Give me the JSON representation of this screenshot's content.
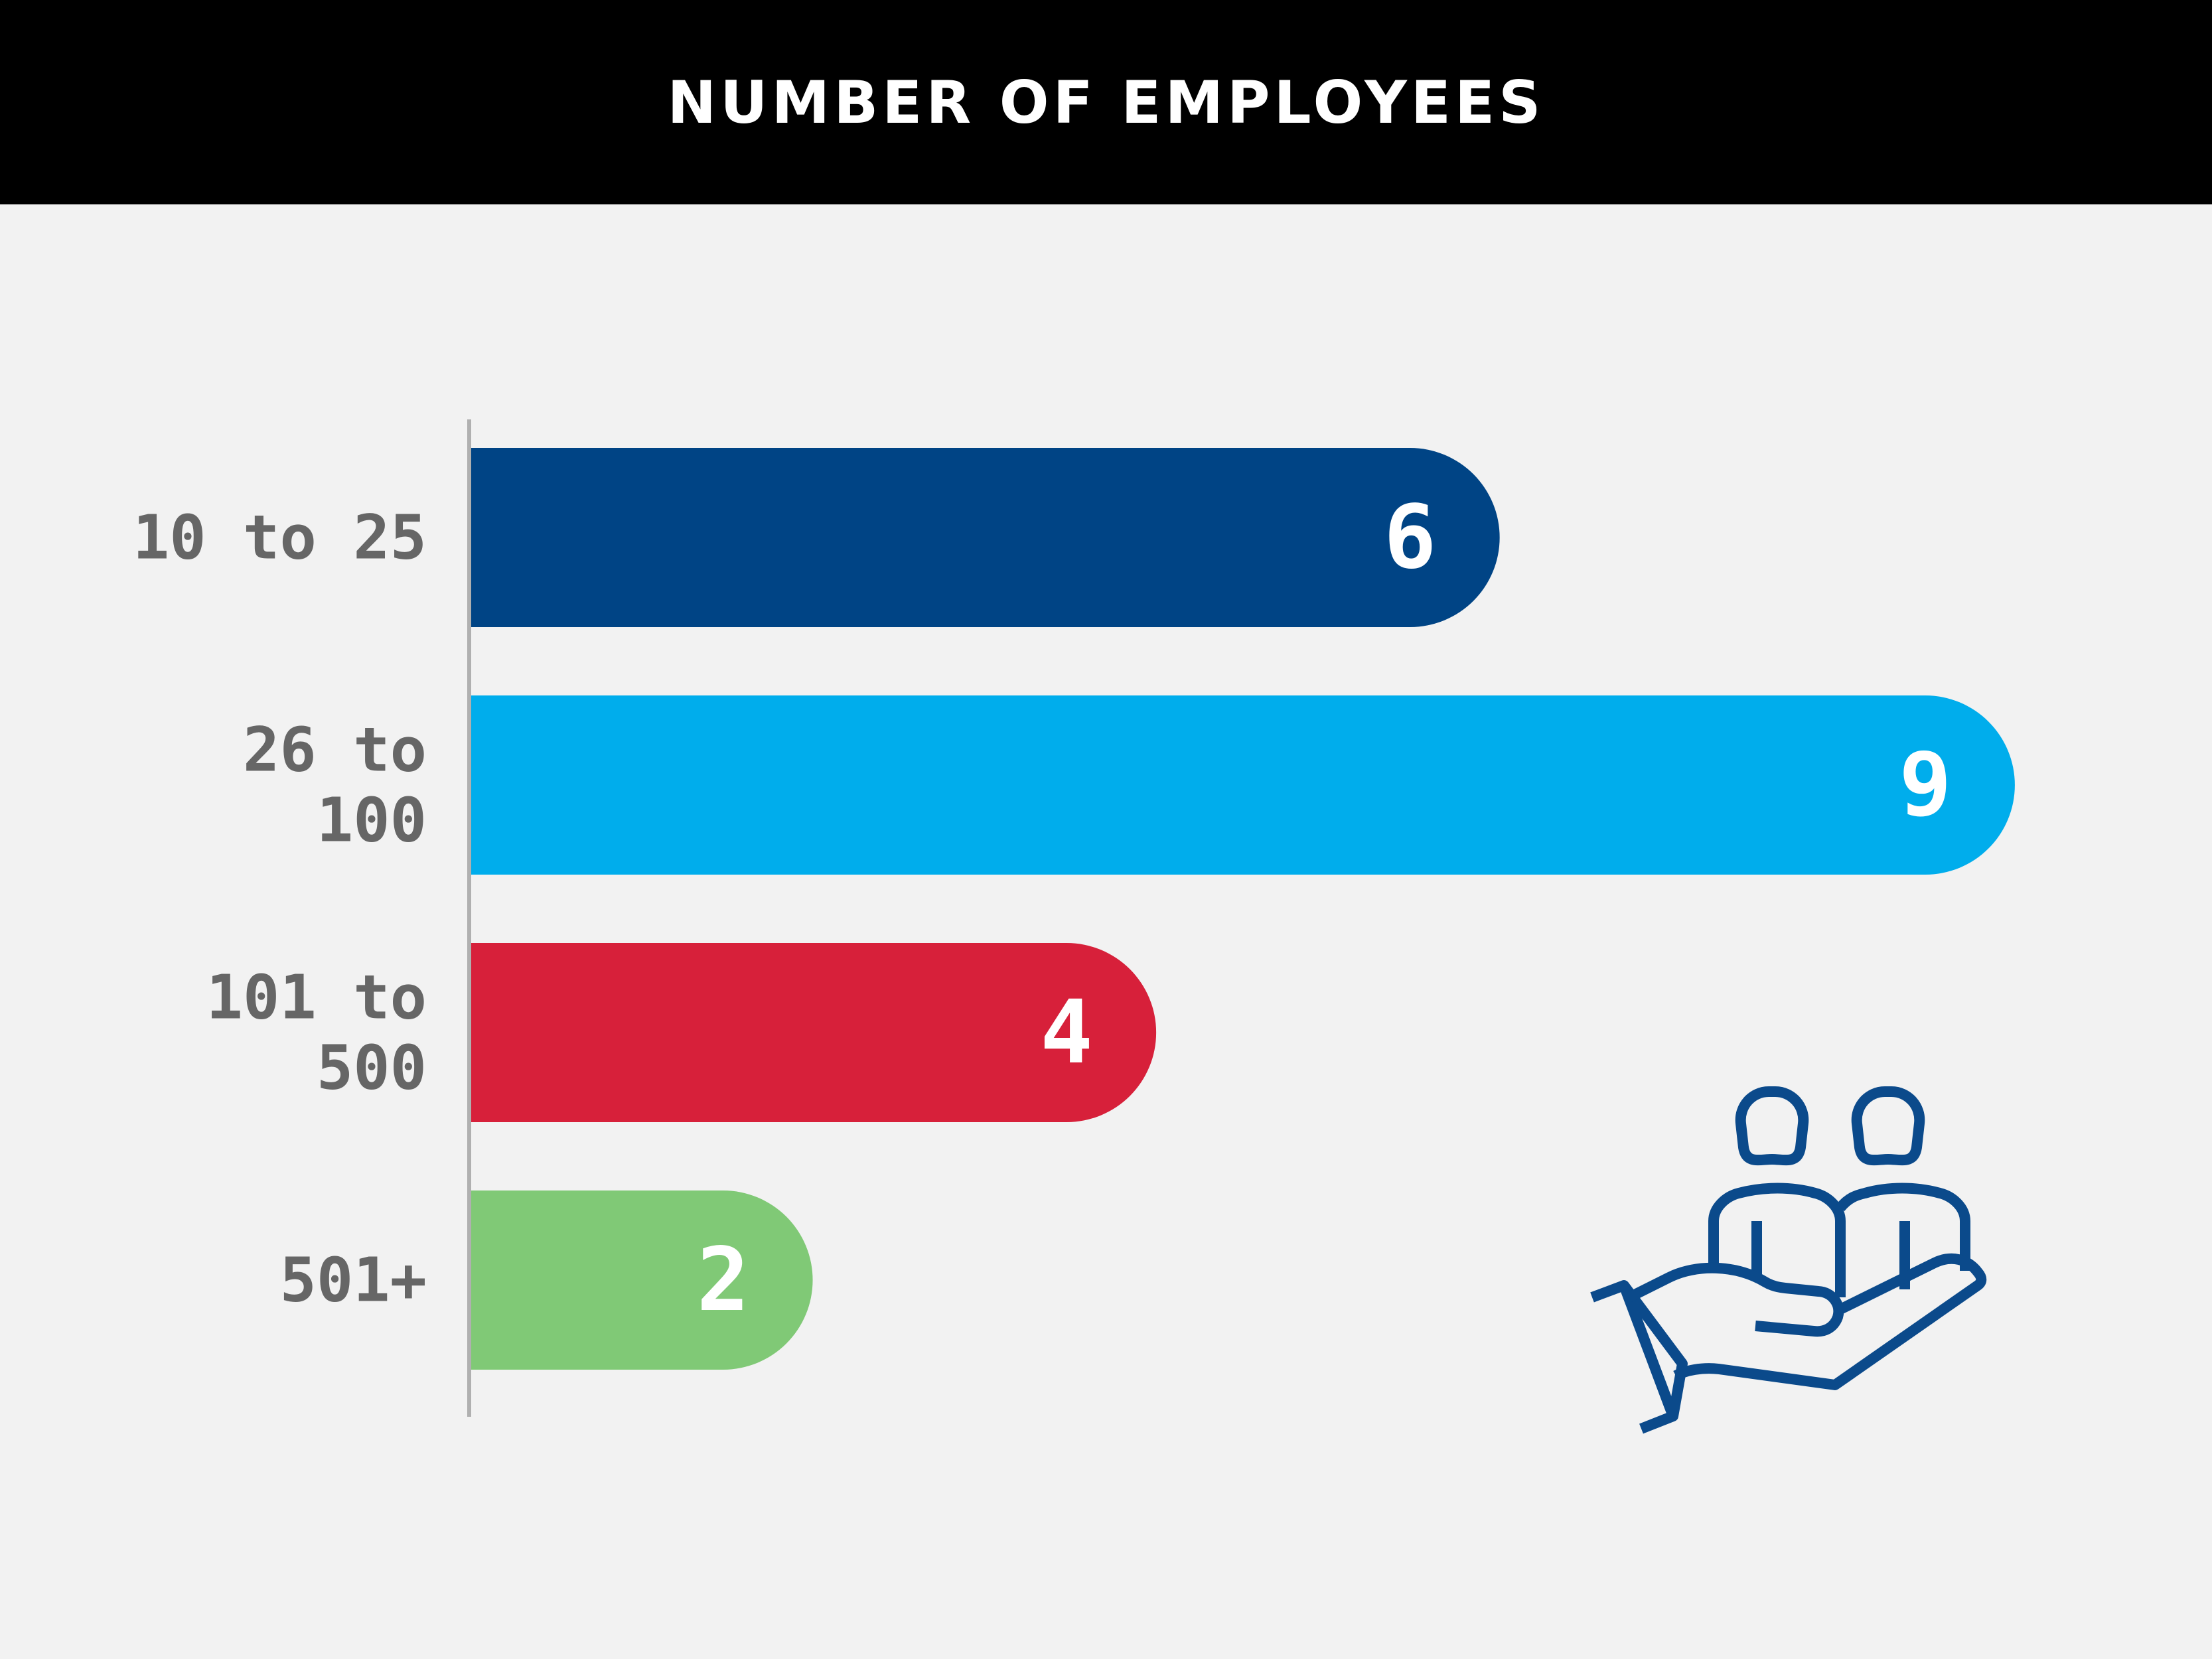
{
  "header": {
    "title": "NUMBER OF EMPLOYEES"
  },
  "colors": {
    "background": "#f2f2f2",
    "header_bg": "#000000",
    "axis": "#b0b0b0",
    "label_text": "#666666",
    "icon": "#0b4a8b"
  },
  "illustration": {
    "icon": "hand-holding-people-icon"
  },
  "chart_data": {
    "type": "bar",
    "orientation": "horizontal",
    "title": "NUMBER OF EMPLOYEES",
    "categories": [
      [
        "10 to 25"
      ],
      [
        "26 to",
        "100"
      ],
      [
        "101 to",
        "500"
      ],
      [
        "501+"
      ]
    ],
    "values": [
      6,
      9,
      4,
      2
    ],
    "value_labels": [
      "6",
      "9",
      "4",
      "2"
    ],
    "bar_colors": [
      "#004485",
      "#00adec",
      "#d7203a",
      "#80c976"
    ],
    "xlim": [
      0,
      9
    ],
    "xlabel": "",
    "ylabel": "",
    "grid": false
  }
}
